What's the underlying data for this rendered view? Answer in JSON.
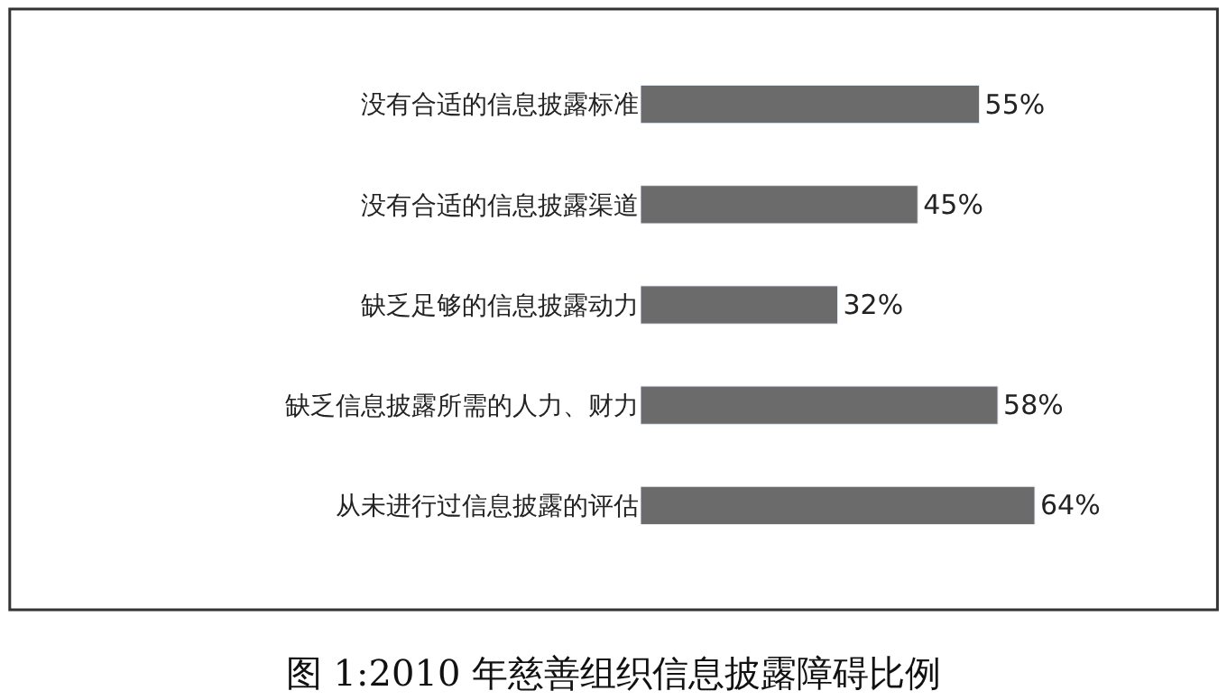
{
  "chart_data": {
    "type": "bar",
    "orientation": "horizontal",
    "title": "图 1:2010 年慈善组织信息披露障碍比例",
    "categories": [
      "没有合适的信息披露标准",
      "没有合适的信息披露渠道",
      "缺乏足够的信息披露动力",
      "缺乏信息披露所需的人力、财力",
      "从未进行过信息披露的评估"
    ],
    "values": [
      55,
      45,
      32,
      58,
      64
    ],
    "value_labels": [
      "55%",
      "45%",
      "32%",
      "58%",
      "64%"
    ],
    "color": "#6b6b6b"
  }
}
